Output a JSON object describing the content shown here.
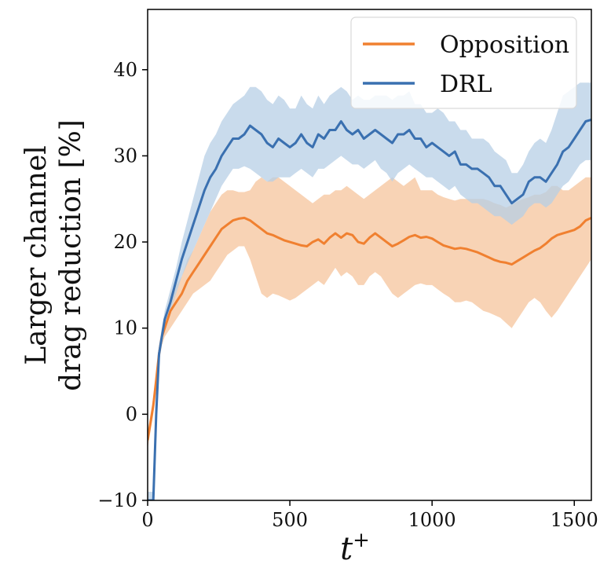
{
  "chart_data": {
    "type": "line",
    "title": "",
    "xlabel": "t",
    "xlabel_superscript": "+",
    "ylabel_line1": "Larger channel",
    "ylabel_line2": "drag reduction [%]",
    "xlim": [
      0,
      1560
    ],
    "ylim": [
      -10,
      47
    ],
    "xticks": [
      0,
      500,
      1000,
      1500
    ],
    "yticks": [
      -10,
      0,
      10,
      20,
      30,
      40
    ],
    "xtick_labels": [
      "0",
      "500",
      "1000",
      "1500"
    ],
    "ytick_labels": [
      "−10",
      "0",
      "10",
      "20",
      "30",
      "40"
    ],
    "grid": false,
    "legend_position": "top-right",
    "series": [
      {
        "name": "Opposition",
        "color": "#f08030",
        "band_color": "#f6c49c",
        "x": [
          0,
          10,
          20,
          30,
          40,
          50,
          60,
          80,
          100,
          120,
          140,
          160,
          180,
          200,
          220,
          240,
          260,
          280,
          300,
          320,
          340,
          360,
          380,
          400,
          420,
          440,
          460,
          480,
          500,
          520,
          540,
          560,
          580,
          600,
          620,
          640,
          660,
          680,
          700,
          720,
          740,
          760,
          780,
          800,
          820,
          840,
          860,
          880,
          900,
          920,
          940,
          960,
          980,
          1000,
          1020,
          1040,
          1060,
          1080,
          1100,
          1120,
          1140,
          1160,
          1180,
          1200,
          1220,
          1240,
          1260,
          1280,
          1300,
          1320,
          1340,
          1360,
          1380,
          1400,
          1420,
          1440,
          1460,
          1480,
          1500,
          1520,
          1540,
          1560
        ],
        "y": [
          -3,
          -1,
          1,
          4,
          7,
          9,
          10,
          12,
          13,
          14,
          15.5,
          16.5,
          17.5,
          18.5,
          19.5,
          20.5,
          21.5,
          22,
          22.5,
          22.7,
          22.8,
          22.5,
          22,
          21.5,
          21,
          20.8,
          20.5,
          20.2,
          20,
          19.8,
          19.6,
          19.5,
          20,
          20.3,
          19.8,
          20.5,
          21,
          20.5,
          21,
          20.8,
          20,
          19.8,
          20.5,
          21,
          20.5,
          20,
          19.5,
          19.8,
          20.2,
          20.6,
          20.8,
          20.5,
          20.6,
          20.4,
          20,
          19.6,
          19.4,
          19.2,
          19.3,
          19.2,
          19,
          18.8,
          18.5,
          18.2,
          17.9,
          17.7,
          17.6,
          17.4,
          17.8,
          18.2,
          18.6,
          19,
          19.3,
          19.8,
          20.4,
          20.8,
          21,
          21.2,
          21.4,
          21.8,
          22.5,
          22.8
        ],
        "lower": [
          -4,
          -2,
          0,
          3,
          6,
          8,
          9,
          10,
          11,
          12,
          13,
          14,
          14.5,
          15,
          15.5,
          16.5,
          17.5,
          18.5,
          19,
          19.5,
          19.5,
          18,
          16,
          14,
          13.5,
          14,
          13.8,
          13.5,
          13.2,
          13.5,
          14,
          14.5,
          15,
          15.5,
          15,
          16,
          17,
          16,
          16.5,
          16,
          15,
          15,
          16,
          16.5,
          16,
          15,
          14,
          13.5,
          14,
          14.5,
          15,
          15.2,
          15,
          15,
          14.5,
          14,
          13.6,
          13,
          13,
          13.2,
          13,
          12.5,
          12,
          11.8,
          11.5,
          11.2,
          10.6,
          10,
          11,
          12,
          13,
          13.5,
          13,
          12,
          11.2,
          12,
          13,
          14,
          15,
          16,
          17,
          18
        ],
        "upper": [
          -2,
          0,
          2,
          5,
          8,
          10,
          11,
          14,
          15,
          16,
          18,
          19,
          20.5,
          22,
          23.5,
          24.5,
          25.5,
          26,
          26,
          25.8,
          25.8,
          26,
          27,
          27.5,
          27,
          27.5,
          27.5,
          27,
          26.5,
          26,
          25.5,
          25,
          24.5,
          25,
          25.5,
          25.5,
          26,
          26,
          26.5,
          26,
          25.5,
          25,
          25.5,
          26,
          26.5,
          27,
          27.5,
          27,
          26.5,
          27,
          27.5,
          26,
          26,
          26,
          25.5,
          25.2,
          25,
          24.8,
          25,
          25,
          25,
          25,
          25,
          24.8,
          24.5,
          24.3,
          24,
          24.3,
          24.7,
          25,
          25.2,
          25.5,
          25.5,
          25.8,
          26.5,
          26.5,
          26,
          26,
          26.5,
          27,
          27.5,
          27.5
        ]
      },
      {
        "name": "DRL",
        "color": "#3a70b0",
        "band_color": "#b7cfe6",
        "x": [
          0,
          10,
          20,
          30,
          40,
          50,
          60,
          80,
          100,
          120,
          140,
          160,
          180,
          200,
          220,
          240,
          260,
          280,
          300,
          320,
          340,
          360,
          380,
          400,
          420,
          440,
          460,
          480,
          500,
          520,
          540,
          560,
          580,
          600,
          620,
          640,
          660,
          680,
          700,
          720,
          740,
          760,
          780,
          800,
          820,
          840,
          860,
          880,
          900,
          920,
          940,
          960,
          980,
          1000,
          1020,
          1040,
          1060,
          1080,
          1100,
          1120,
          1140,
          1160,
          1180,
          1200,
          1220,
          1240,
          1260,
          1280,
          1300,
          1320,
          1340,
          1360,
          1380,
          1400,
          1420,
          1440,
          1460,
          1480,
          1500,
          1520,
          1540,
          1560
        ],
        "y": [
          -10,
          -10,
          -10,
          0,
          7,
          9,
          11,
          13,
          15.5,
          18,
          20,
          22,
          24,
          26,
          27.5,
          28.5,
          30,
          31,
          32,
          32,
          32.5,
          33.5,
          33,
          32.5,
          31.5,
          31,
          32,
          31.5,
          31,
          31.5,
          32.5,
          31.5,
          31,
          32.5,
          32,
          33,
          33,
          34,
          33,
          32.5,
          33,
          32,
          32.5,
          33,
          32.5,
          32,
          31.5,
          32.5,
          32.5,
          33,
          32,
          32,
          31,
          31.5,
          31,
          30.5,
          30,
          30.5,
          29,
          29,
          28.5,
          28.5,
          28,
          27.5,
          26.5,
          26.5,
          25.5,
          24.5,
          25,
          25.5,
          27,
          27.5,
          27.5,
          27,
          28,
          29,
          30.5,
          31,
          32,
          33,
          34,
          34.2
        ],
        "lower": [
          -10,
          -10,
          -10,
          -1,
          6,
          8,
          10,
          12,
          14,
          16,
          17.5,
          19,
          20.5,
          22,
          23.5,
          25,
          26.5,
          27.5,
          28.5,
          28.5,
          28.8,
          28.5,
          28,
          27.5,
          27,
          27,
          27.5,
          27.5,
          27.5,
          28,
          28.5,
          28,
          27.5,
          28.5,
          28.5,
          29,
          29.5,
          30,
          29.5,
          29,
          29,
          28.5,
          29,
          29.5,
          28.5,
          28,
          27,
          28,
          28.5,
          29,
          28.5,
          28,
          27.5,
          27.5,
          27,
          26.5,
          26,
          26.5,
          25.5,
          25,
          24.5,
          24.5,
          24,
          23.5,
          23,
          23,
          22.5,
          22,
          22.5,
          23,
          24,
          24.5,
          24.5,
          24,
          24.5,
          25.5,
          26.5,
          27,
          28,
          29,
          29.5,
          29.5
        ],
        "upper": [
          -9,
          -9,
          -9,
          1,
          8,
          10,
          12,
          14.5,
          17,
          20,
          22.5,
          25,
          27.5,
          30,
          31.5,
          32.5,
          34,
          35,
          36,
          36.5,
          37,
          38,
          38,
          37.5,
          36.5,
          36,
          37,
          36.5,
          35.5,
          35.5,
          37,
          36,
          35.5,
          37,
          36,
          37,
          37.5,
          38,
          37.5,
          36.5,
          37,
          36.5,
          36.5,
          37,
          37,
          37,
          36.5,
          37,
          37,
          37.5,
          36,
          36,
          35,
          35,
          35.5,
          35,
          34,
          34,
          33,
          33,
          32,
          32,
          32,
          31.5,
          30.5,
          30,
          29.5,
          28,
          28,
          29,
          30.5,
          31.5,
          32,
          31.5,
          33,
          35,
          37,
          37.5,
          38,
          38.5,
          38.5,
          38.5
        ]
      }
    ]
  }
}
